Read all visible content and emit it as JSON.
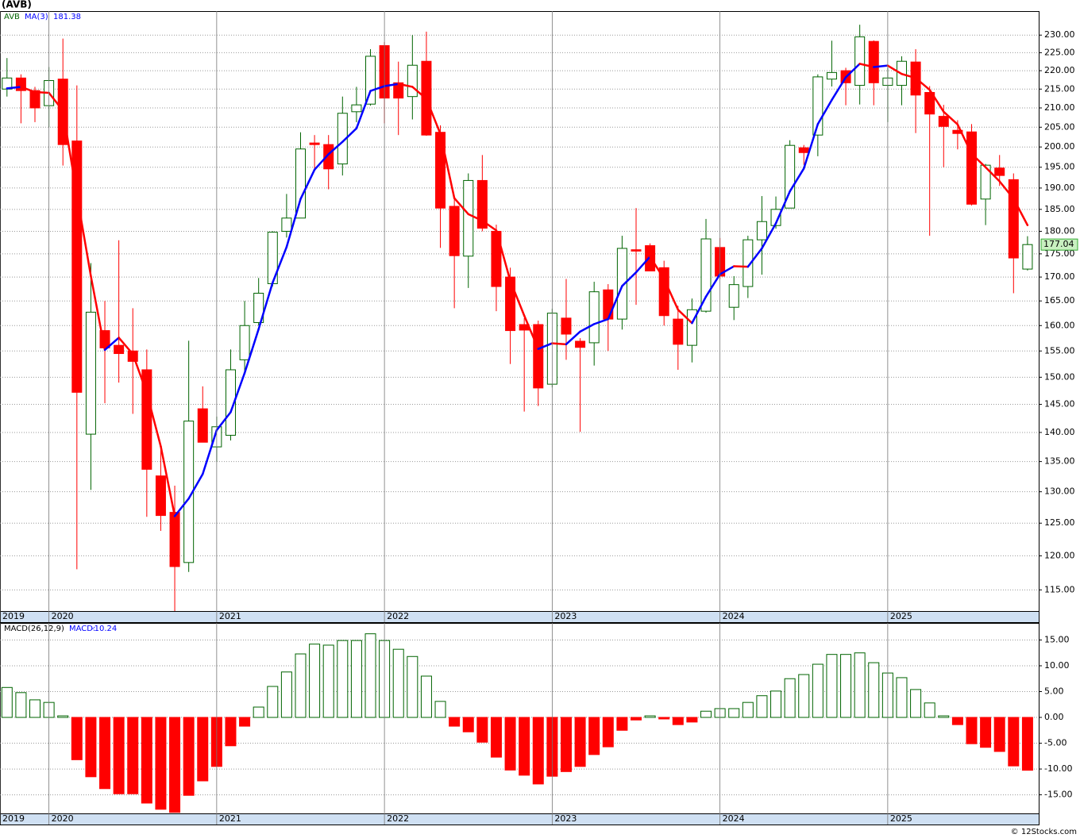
{
  "chart_data": [
    {
      "type": "candlestick",
      "title": "(AVB)",
      "symbol": "AVB",
      "log": true,
      "grid": true,
      "up_color": "#006400",
      "down_color": "#ff0000",
      "open": [
        215,
        218,
        214.6,
        210.6,
        217.7,
        201.5,
        139.7,
        159,
        156.1,
        155,
        151.4,
        132.6,
        126.7,
        119,
        144.2,
        137.5,
        139.5,
        153.3,
        160.6,
        168.6,
        180,
        183,
        201,
        200.6,
        195.8,
        209,
        211,
        227,
        216.7,
        213,
        222.6,
        203.7,
        185.7,
        174.5,
        191.8,
        180,
        170,
        160.2,
        160.2,
        148.7,
        161.5,
        156.9,
        156.6,
        167.3,
        161.3,
        175.9,
        176.8,
        172,
        161.3,
        156.1,
        162.9,
        176.4,
        163.7,
        168,
        178.1,
        181.3,
        185.3,
        199.8,
        203,
        217.7,
        220,
        216,
        228.2,
        216,
        216,
        222.4,
        214.1,
        207.8,
        204.2,
        203.8,
        187.4,
        194.8,
        192,
        171.7
      ],
      "high": [
        223.5,
        219,
        215.6,
        221,
        229,
        216,
        173,
        165,
        178,
        163.5,
        155.3,
        138,
        131,
        157,
        148.3,
        142.8,
        155.3,
        165,
        169.8,
        180,
        188.6,
        203.7,
        203,
        203,
        213,
        215.6,
        226,
        228,
        222.5,
        230,
        231,
        205.5,
        187.7,
        193.5,
        198,
        181.5,
        172,
        161.5,
        161,
        163.4,
        169.6,
        157.5,
        169,
        168.5,
        179,
        185.3,
        177.3,
        173.5,
        164,
        165.5,
        182.8,
        178.5,
        170.2,
        179,
        188.1,
        188,
        201.7,
        200.5,
        219,
        228.4,
        220.8,
        233,
        228.5,
        220.8,
        224,
        226,
        215.8,
        210.8,
        206.8,
        205.8,
        195.8,
        198,
        193.5,
        178.9
      ],
      "low": [
        213,
        206,
        206.3,
        205,
        195.4,
        118,
        130.3,
        145.2,
        149,
        143.3,
        126,
        123.8,
        112,
        117.6,
        138.3,
        135,
        138.6,
        151,
        160,
        168,
        178.6,
        183,
        194,
        189.7,
        193,
        206.3,
        210.6,
        206,
        203,
        207,
        202.8,
        176.3,
        163.5,
        167.7,
        180,
        162.9,
        152.5,
        143.7,
        144.7,
        148.1,
        153.3,
        140.1,
        152.2,
        155,
        159.2,
        164.2,
        171.3,
        160,
        151.4,
        152.8,
        162.6,
        169.6,
        161.1,
        165.6,
        170.5,
        180.6,
        185.3,
        195.6,
        197.7,
        215.7,
        210.7,
        210.9,
        210.7,
        206.3,
        210.7,
        203.5,
        179,
        195,
        199.4,
        185.9,
        181.4,
        190.5,
        166.6,
        171.4
      ],
      "close": [
        218,
        214.6,
        210,
        217.3,
        200.6,
        147.2,
        162.7,
        155.6,
        154.5,
        153,
        133.7,
        126.2,
        118.4,
        142,
        138.3,
        141,
        151.4,
        160,
        166.6,
        179.8,
        183,
        199.5,
        200.6,
        194.6,
        208.6,
        210.8,
        224,
        212.6,
        212.6,
        221.5,
        203,
        185.3,
        174.6,
        191.8,
        180.7,
        168,
        159,
        159.1,
        148,
        162.5,
        158.3,
        155.7,
        166.9,
        161.3,
        176.2,
        175.6,
        171.3,
        162,
        156.3,
        163.2,
        178.3,
        170.2,
        168.4,
        178.1,
        182.2,
        185,
        200.4,
        198.6,
        218.3,
        219.5,
        216.7,
        229.5,
        216.7,
        218,
        222.6,
        213.4,
        208.4,
        205.2,
        203.4,
        186.2,
        195.5,
        193,
        174.1,
        177.04
      ],
      "ma": {
        "name": "MA(3)",
        "up_color": "#0000ff",
        "down_color": "#ff0000",
        "values": [
          215.2,
          215.6,
          214.2,
          214.0,
          209.3,
          188.4,
          170.2,
          155.2,
          157.6,
          154.4,
          147.1,
          137.6,
          126.1,
          128.9,
          132.9,
          140.4,
          143.6,
          150.8,
          159.3,
          168.8,
          176.5,
          187.4,
          194.4,
          198.2,
          201.3,
          204.7,
          214.5,
          215.8,
          216.4,
          215.6,
          212.4,
          203.3,
          187.6,
          183.9,
          182.4,
          180.2,
          169.2,
          162.0,
          155.4,
          156.5,
          156.3,
          158.8,
          160.3,
          161.3,
          168.1,
          171.0,
          174.4,
          169.6,
          163.2,
          160.5,
          165.9,
          170.6,
          172.3,
          172.2,
          176.2,
          181.8,
          189.2,
          194.7,
          205.8,
          212.1,
          218.2,
          221.9,
          221.0,
          221.4,
          219.1,
          218.0,
          214.8,
          209.0,
          205.7,
          198.3,
          195.0,
          191.6,
          187.5,
          181.38
        ]
      },
      "xlim": [
        -0.5,
        73.8
      ],
      "xticks": [
        {
          "value": -0.5,
          "label": "2019"
        },
        {
          "value": 3,
          "label": "2020"
        },
        {
          "value": 15,
          "label": "2021"
        },
        {
          "value": 27,
          "label": "2022"
        },
        {
          "value": 39,
          "label": "2023"
        },
        {
          "value": 51,
          "label": "2024"
        },
        {
          "value": 63,
          "label": "2025"
        }
      ],
      "ylim": [
        112,
        237
      ],
      "yticks": [
        {
          "value": 115,
          "label": "115.00"
        },
        {
          "value": 120,
          "label": "120.00"
        },
        {
          "value": 125,
          "label": "125.00"
        },
        {
          "value": 130,
          "label": "130.00"
        },
        {
          "value": 135,
          "label": "135.00"
        },
        {
          "value": 140,
          "label": "140.00"
        },
        {
          "value": 145,
          "label": "145.00"
        },
        {
          "value": 150,
          "label": "150.00"
        },
        {
          "value": 155,
          "label": "155.00"
        },
        {
          "value": 160,
          "label": "160.00"
        },
        {
          "value": 165,
          "label": "165.00"
        },
        {
          "value": 170,
          "label": "170.00"
        },
        {
          "value": 175,
          "label": "175.00"
        },
        {
          "value": 180,
          "label": "180.00"
        },
        {
          "value": 185,
          "label": "185.00"
        },
        {
          "value": 190,
          "label": "190.00"
        },
        {
          "value": 195,
          "label": "195.00"
        },
        {
          "value": 200,
          "label": "200.00"
        },
        {
          "value": 205,
          "label": "205.00"
        },
        {
          "value": 210,
          "label": "210.00"
        },
        {
          "value": 215,
          "label": "215.00"
        },
        {
          "value": 220,
          "label": "220.00"
        },
        {
          "value": 225,
          "label": "225.00"
        },
        {
          "value": 230,
          "label": "230.00"
        }
      ]
    },
    {
      "type": "bar",
      "name": "MACD(26,12,9)",
      "value_name": "MACD:",
      "grid": true,
      "up_color": "#006400",
      "down_color": "#ff0000",
      "values": [
        5.8,
        4.8,
        3.4,
        2.9,
        0.3,
        -8.2,
        -11.5,
        -13.8,
        -14.8,
        -14.8,
        -16.6,
        -17.8,
        -18.4,
        -15.1,
        -12.3,
        -9.5,
        -5.5,
        -1.7,
        2.0,
        6.0,
        8.8,
        12.3,
        14.2,
        14.0,
        14.9,
        14.9,
        16.2,
        14.9,
        13.2,
        11.8,
        8.0,
        3.1,
        -1.7,
        -2.8,
        -4.8,
        -7.7,
        -10.2,
        -11.2,
        -12.9,
        -11.4,
        -10.5,
        -9.5,
        -7.2,
        -5.7,
        -2.5,
        -0.5,
        0.3,
        -0.3,
        -1.4,
        -0.9,
        1.2,
        1.7,
        1.7,
        2.9,
        4.2,
        5.1,
        7.5,
        8.3,
        10.3,
        12.2,
        12.2,
        12.5,
        10.6,
        8.6,
        7.7,
        5.4,
        2.8,
        0.3,
        -1.4,
        -5.1,
        -5.8,
        -6.6,
        -9.4,
        -10.24
      ],
      "xlim": [
        -0.5,
        73.8
      ],
      "xticks": [
        {
          "value": -0.5,
          "label": "2019"
        },
        {
          "value": 3,
          "label": "2020"
        },
        {
          "value": 15,
          "label": "2021"
        },
        {
          "value": 27,
          "label": "2022"
        },
        {
          "value": 39,
          "label": "2023"
        },
        {
          "value": 51,
          "label": "2024"
        },
        {
          "value": 63,
          "label": "2025"
        }
      ],
      "ylim": [
        -18.6,
        18.3
      ],
      "yticks": [
        {
          "value": -15,
          "label": "-15.00"
        },
        {
          "value": -10,
          "label": "-10.00"
        },
        {
          "value": -5,
          "label": "-5.00"
        },
        {
          "value": 0,
          "label": "0.00"
        },
        {
          "value": 5,
          "label": "5.00"
        },
        {
          "value": 10,
          "label": "10.00"
        },
        {
          "value": 15,
          "label": "15.00"
        }
      ]
    }
  ],
  "footer": "© 12Stocks.com"
}
